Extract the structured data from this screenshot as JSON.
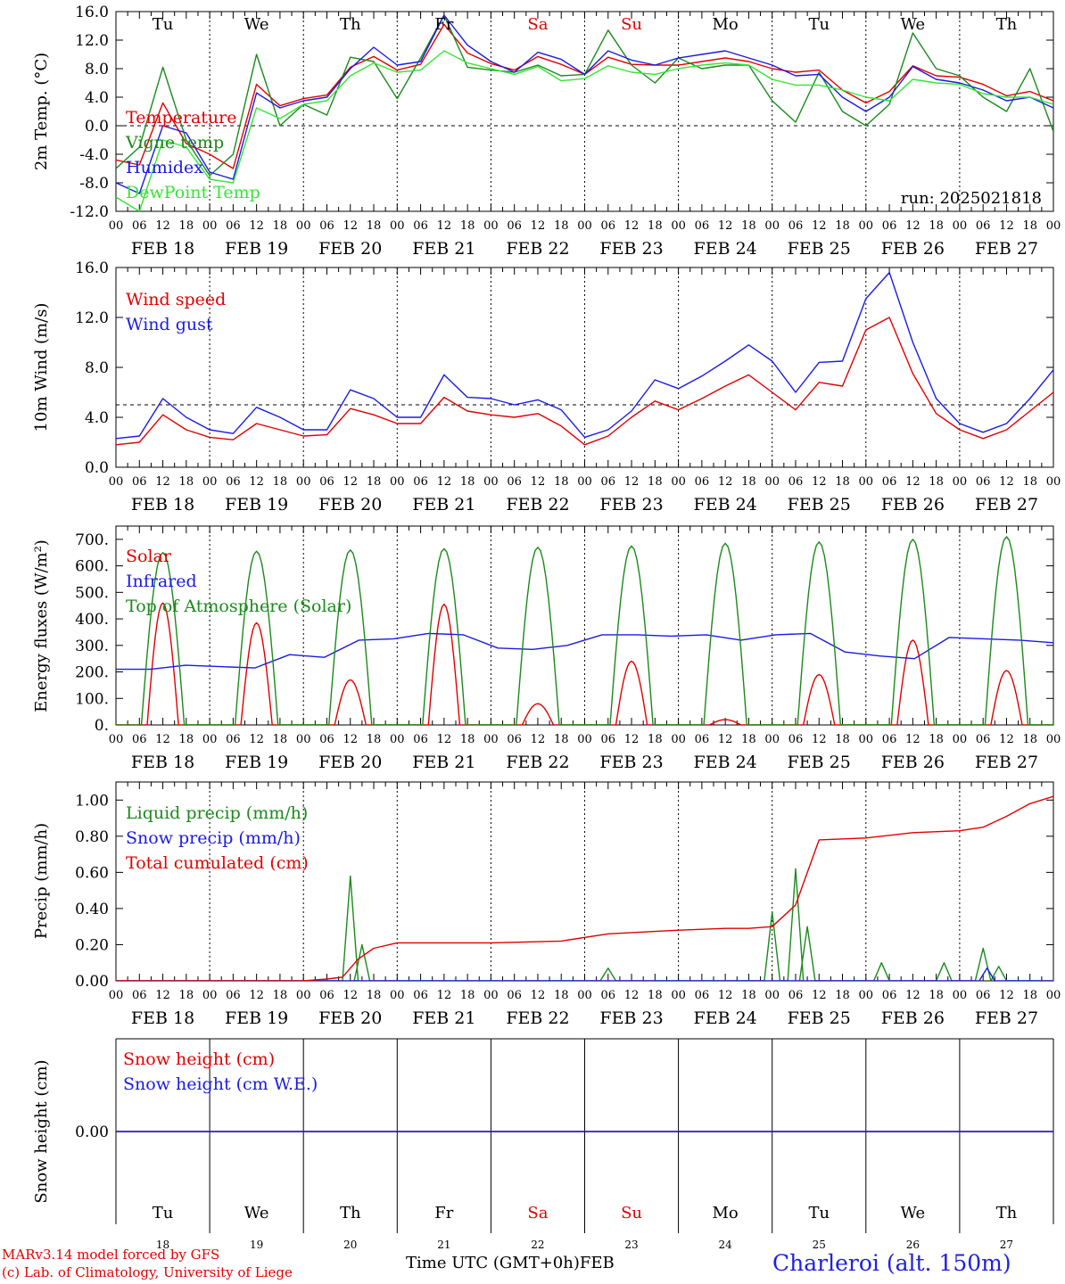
{
  "footer": {
    "model": "MARv3.14 model forced by GFS",
    "credit": "(c) Lab. of Climatology, University of Liege",
    "axis_title": "Time UTC (GMT+0h)",
    "month": "FEB",
    "location": "Charleroi (alt. 150m)"
  },
  "days": {
    "dow": [
      "Tu",
      "We",
      "Th",
      "Fr",
      "Sa",
      "Su",
      "Mo",
      "Tu",
      "We",
      "Th"
    ],
    "dow_colors": [
      "#000000",
      "#000000",
      "#000000",
      "#000000",
      "#e00000",
      "#e00000",
      "#000000",
      "#000000",
      "#000000",
      "#000000"
    ],
    "dates": [
      "FEB 18",
      "FEB 19",
      "FEB 20",
      "FEB 21",
      "FEB 22",
      "FEB 23",
      "FEB 24",
      "FEB 25",
      "FEB 26",
      "FEB 27"
    ],
    "day_numbers": [
      "18",
      "19",
      "20",
      "21",
      "22",
      "23",
      "24",
      "25",
      "26",
      "27"
    ],
    "hour_ticks": [
      "00",
      "06",
      "12",
      "18"
    ],
    "final_tick": "00"
  },
  "colors": {
    "red": "#e00000",
    "green": "#1a8a1a",
    "blue": "#1a1ae6",
    "lightgreen": "#33e633"
  },
  "chart_data": [
    {
      "type": "line",
      "id": "temp",
      "ylabel": "2m Temp. (°C)",
      "ylim": [
        -12,
        16
      ],
      "yticks": [
        "-12.0",
        "-8.0",
        "-4.0",
        "0.0",
        "4.0",
        "8.0",
        "12.0",
        "16.0"
      ],
      "reference_line": 0,
      "annotation": "run: 2025021818",
      "x_hours": [
        0,
        6,
        12,
        18,
        24,
        30,
        36,
        42,
        48,
        54,
        60,
        66,
        72,
        78,
        84,
        90,
        96,
        102,
        108,
        114,
        120,
        126,
        132,
        138,
        144,
        150,
        156,
        162,
        168,
        174,
        180,
        186,
        192,
        198,
        204,
        210,
        216,
        222,
        228,
        234,
        240
      ],
      "series": [
        {
          "name": "Temperature",
          "color": "red",
          "values": [
            -4.8,
            -5.5,
            3.2,
            -2.5,
            -4,
            -6,
            5.8,
            2.8,
            3.8,
            4.3,
            8.2,
            9.7,
            7.8,
            8.6,
            14.2,
            10.2,
            8.7,
            7.8,
            9.7,
            8.6,
            7.2,
            9.6,
            8.6,
            8.5,
            8.5,
            9.0,
            9.5,
            9.0,
            8.0,
            7.5,
            7.8,
            5.0,
            3.2,
            4.8,
            8.4,
            7.0,
            6.8,
            5.8,
            4.2,
            4.8,
            3.5
          ]
        },
        {
          "name": "Vigne temp",
          "color": "green",
          "values": [
            -6,
            -3,
            8.2,
            -2,
            -7,
            -4,
            10,
            0,
            3,
            1.5,
            9.6,
            9.0,
            3.8,
            9.5,
            15.5,
            8.2,
            7.8,
            7.5,
            8.5,
            7,
            7.2,
            13.4,
            8.5,
            6,
            9.5,
            8,
            8.5,
            8.5,
            3.5,
            0.5,
            7.5,
            2.0,
            0,
            3,
            13,
            8,
            7,
            4,
            2,
            8,
            -0.8
          ]
        },
        {
          "name": "Humidex",
          "color": "blue",
          "values": [
            -8,
            -9.5,
            0,
            -1,
            -6.5,
            -7.5,
            4.6,
            2.5,
            3.5,
            4,
            8.0,
            11.0,
            8.5,
            9.0,
            15.5,
            11.3,
            9.0,
            7.5,
            10.3,
            9.3,
            7.2,
            10.5,
            9.2,
            8.5,
            9.5,
            10,
            10.5,
            9.5,
            8.5,
            7,
            7.2,
            4.0,
            2.0,
            4.0,
            8.3,
            6.5,
            6.0,
            5.0,
            3.5,
            4.0,
            2.5
          ]
        },
        {
          "name": "DewPoint Temp",
          "color": "lightgreen",
          "values": [
            -10,
            -12,
            -2,
            -3,
            -7.5,
            -8,
            2.5,
            1.0,
            3.0,
            3.5,
            7.0,
            8.8,
            7.5,
            7.8,
            10.5,
            8.8,
            8.0,
            7.2,
            8.3,
            6.3,
            6.6,
            8.4,
            7.5,
            7.2,
            8.0,
            8.5,
            8.8,
            8.5,
            6.5,
            5.7,
            5.7,
            5.0,
            4.0,
            3.5,
            6.5,
            6.0,
            5.8,
            4.5,
            4.0,
            4.0,
            3.0
          ]
        }
      ]
    },
    {
      "type": "line",
      "id": "wind",
      "ylabel": "10m Wind (m/s)",
      "ylim": [
        0,
        16
      ],
      "yticks": [
        "0.0",
        "4.0",
        "8.0",
        "12.0",
        "16.0"
      ],
      "reference_line": 5,
      "x_hours": [
        0,
        6,
        12,
        18,
        24,
        30,
        36,
        42,
        48,
        54,
        60,
        66,
        72,
        78,
        84,
        90,
        96,
        102,
        108,
        114,
        120,
        126,
        132,
        138,
        144,
        150,
        156,
        162,
        168,
        174,
        180,
        186,
        192,
        198,
        204,
        210,
        216,
        222,
        228,
        234,
        240
      ],
      "series": [
        {
          "name": "Wind speed",
          "color": "red",
          "values": [
            1.8,
            2.0,
            4.2,
            3.0,
            2.4,
            2.2,
            3.5,
            3.0,
            2.5,
            2.6,
            4.7,
            4.2,
            3.5,
            3.5,
            5.6,
            4.5,
            4.2,
            4.0,
            4.3,
            3.3,
            1.8,
            2.5,
            4.0,
            5.3,
            4.6,
            5.5,
            6.5,
            7.4,
            6.0,
            4.6,
            6.8,
            6.5,
            11.0,
            12.0,
            7.5,
            4.3,
            3.0,
            2.3,
            3.0,
            4.5,
            6.0
          ]
        },
        {
          "name": "Wind gust",
          "color": "blue",
          "values": [
            2.3,
            2.5,
            5.5,
            4.0,
            3.0,
            2.7,
            4.8,
            4.0,
            3.0,
            3.0,
            6.2,
            5.5,
            4.0,
            4.0,
            7.4,
            5.6,
            5.5,
            5.0,
            5.4,
            4.6,
            2.4,
            3.0,
            4.5,
            7.0,
            6.3,
            7.3,
            8.5,
            9.8,
            8.5,
            6.0,
            8.4,
            8.5,
            13.5,
            15.6,
            10.0,
            5.5,
            3.5,
            2.8,
            3.5,
            5.5,
            7.8
          ]
        }
      ]
    },
    {
      "type": "line",
      "id": "flux",
      "ylabel": "Energy fluxes (W/m²)",
      "ylim": [
        0,
        750
      ],
      "yticks": [
        "0.",
        "100.",
        "200.",
        "300.",
        "400.",
        "500.",
        "600.",
        "700."
      ],
      "series": [
        {
          "name": "Solar",
          "color": "red",
          "day_peaks": [
            460,
            385,
            170,
            455,
            80,
            240,
            20,
            190,
            320,
            205
          ]
        },
        {
          "name": "Infrared",
          "color": "blue",
          "values": [
            210,
            210,
            225,
            220,
            215,
            265,
            255,
            320,
            325,
            345,
            340,
            290,
            285,
            300,
            340,
            340,
            335,
            340,
            320,
            340,
            345,
            275,
            260,
            250,
            330,
            325,
            320,
            310
          ]
        },
        {
          "name": "Top of Atmosphere (Solar)",
          "color": "green",
          "day_peaks": [
            650,
            655,
            660,
            665,
            670,
            675,
            685,
            690,
            700,
            710
          ]
        }
      ]
    },
    {
      "type": "line",
      "id": "precip",
      "ylabel": "Precip (mm/h)",
      "ylim": [
        0,
        1.1
      ],
      "yticks": [
        "0.00",
        "0.20",
        "0.40",
        "0.60",
        "0.80",
        "1.00"
      ],
      "series": [
        {
          "name": "Liquid precip (mm/h)",
          "color": "green",
          "pulses": [
            [
              60,
              0.58
            ],
            [
              63,
              0.2
            ],
            [
              168,
              0.38
            ],
            [
              174,
              0.62
            ],
            [
              177,
              0.3
            ],
            [
              126,
              0.07
            ],
            [
              196,
              0.1
            ],
            [
              212,
              0.1
            ],
            [
              222,
              0.18
            ],
            [
              226,
              0.08
            ]
          ]
        },
        {
          "name": "Snow precip (mm/h)",
          "color": "blue",
          "pulses": [
            [
              223,
              0.07
            ]
          ]
        },
        {
          "name": "Total cumulated (cm)",
          "color": "red",
          "x_hours": [
            0,
            48,
            54,
            58,
            62,
            66,
            72,
            96,
            114,
            126,
            144,
            156,
            162,
            168,
            174,
            180,
            192,
            204,
            216,
            222,
            228,
            234,
            240
          ],
          "values": [
            0,
            0,
            0.01,
            0.02,
            0.12,
            0.18,
            0.21,
            0.21,
            0.22,
            0.26,
            0.28,
            0.29,
            0.29,
            0.3,
            0.42,
            0.78,
            0.79,
            0.82,
            0.83,
            0.85,
            0.91,
            0.98,
            1.02
          ]
        }
      ]
    },
    {
      "type": "line",
      "id": "snow",
      "ylabel": "Snow height (cm)",
      "ylim": [
        -1,
        1
      ],
      "yticks": [
        "0.00"
      ],
      "series": [
        {
          "name": "Snow height (cm)",
          "color": "red",
          "values": [
            0,
            0
          ]
        },
        {
          "name": "Snow height (cm W.E.)",
          "color": "blue",
          "values": [
            0,
            0
          ]
        }
      ]
    }
  ]
}
